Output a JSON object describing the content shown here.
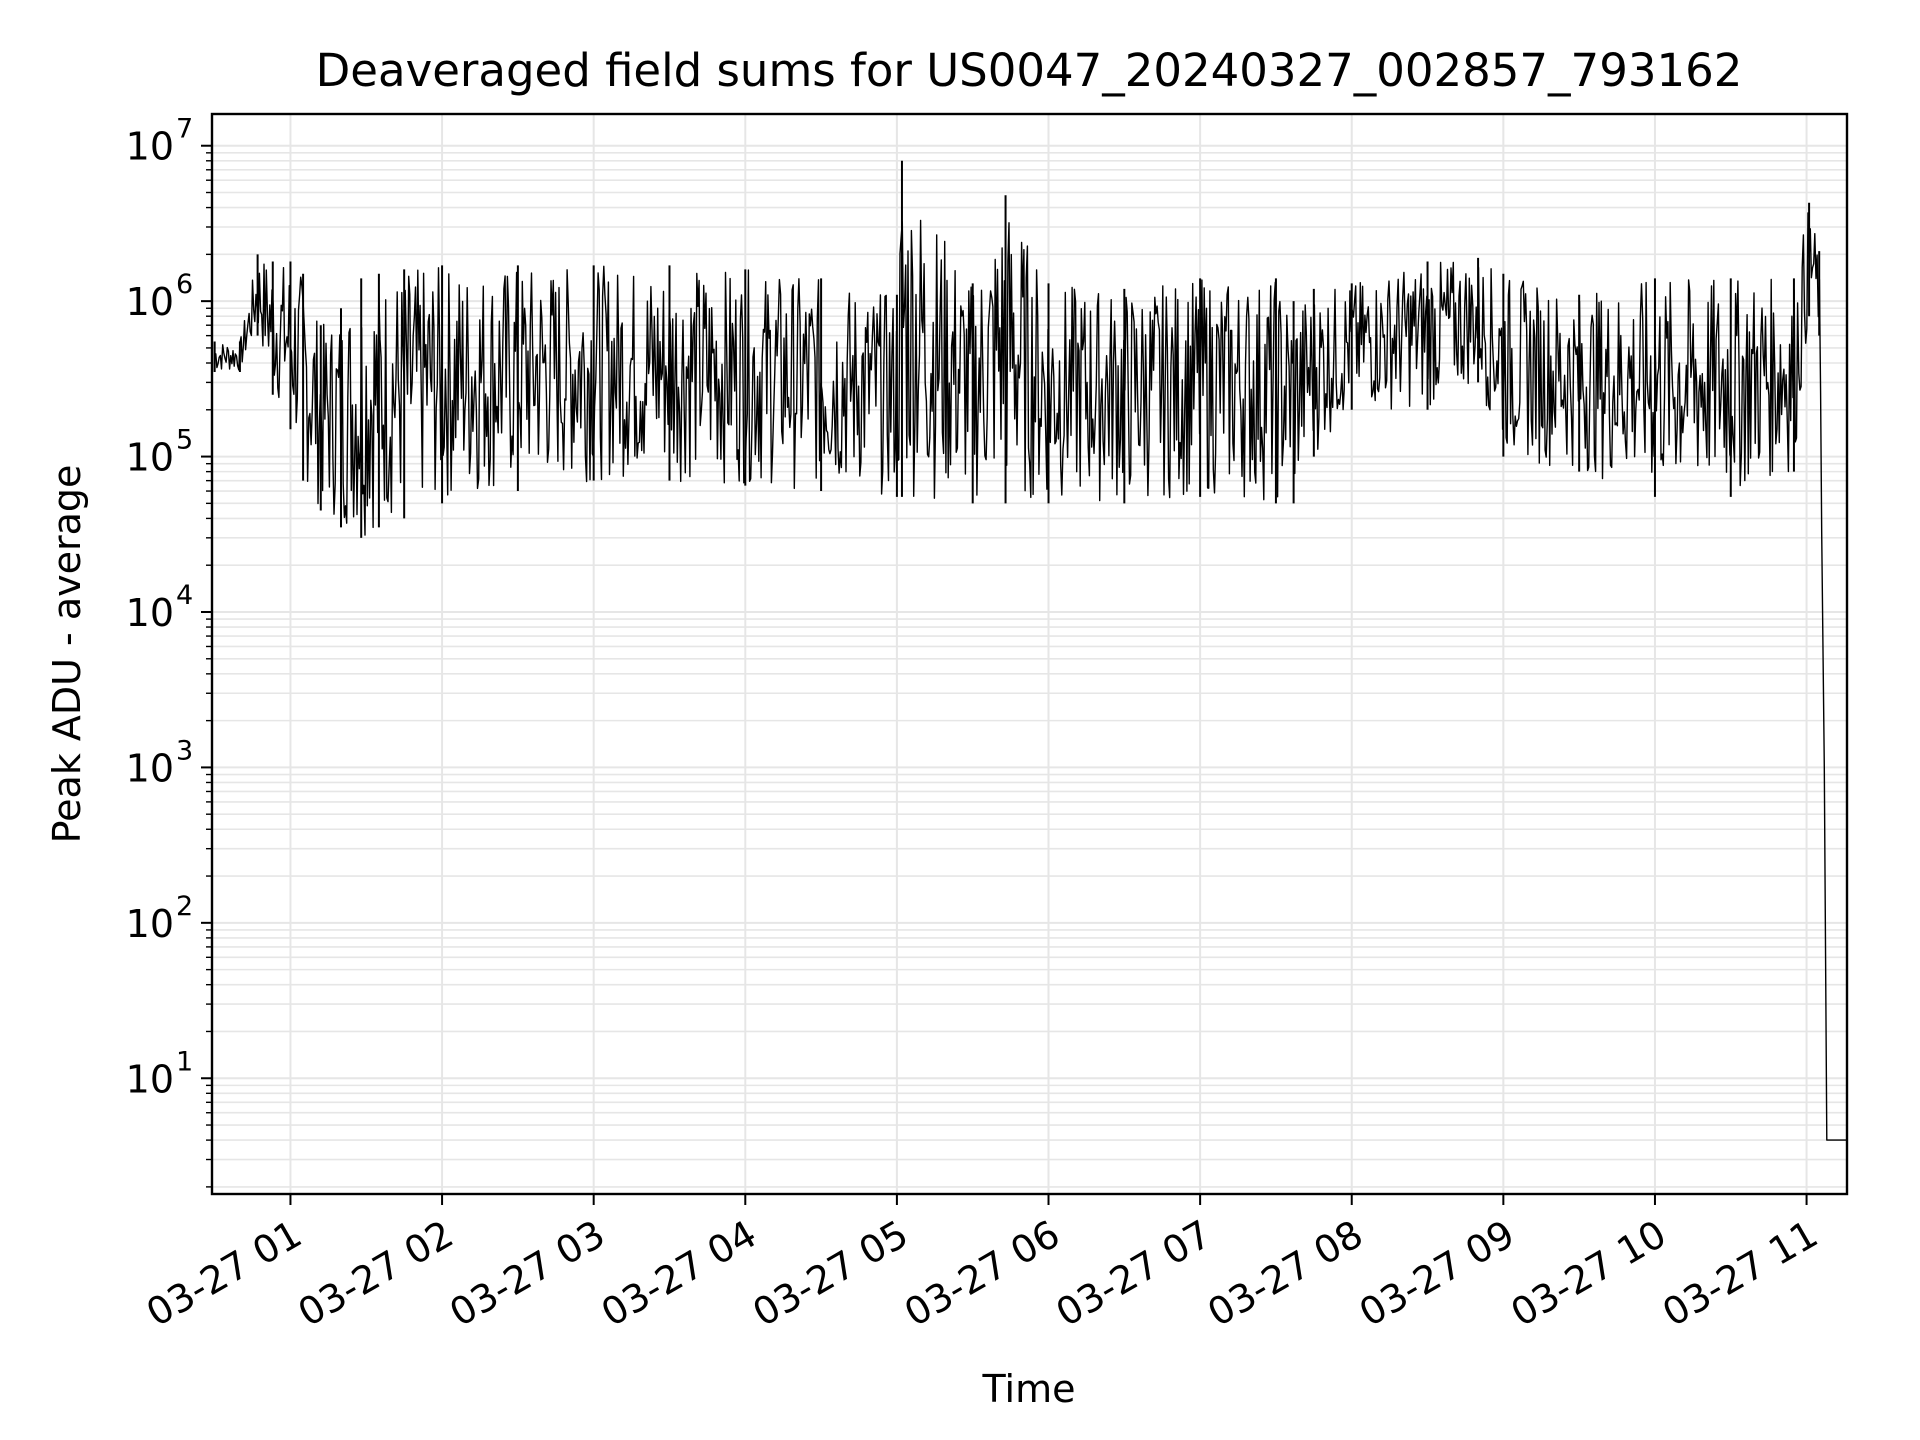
{
  "chart_data": {
    "type": "line",
    "title": "Deaveraged field sums for US0047_20240327_002857_793162",
    "xlabel": "Time",
    "ylabel": "Peak ADU - average",
    "yscale": "log",
    "ylim": [
      1.8,
      16000000
    ],
    "xlim": [
      "2024-03-27 00:28:57",
      "2024-03-27 11:16:00"
    ],
    "grid": true,
    "line_color": "#000000",
    "grid_color": "#e6e6e6",
    "x_ticks": [
      {
        "value": "2024-03-27 01:00",
        "label": "03-27 01"
      },
      {
        "value": "2024-03-27 02:00",
        "label": "03-27 02"
      },
      {
        "value": "2024-03-27 03:00",
        "label": "03-27 03"
      },
      {
        "value": "2024-03-27 04:00",
        "label": "03-27 04"
      },
      {
        "value": "2024-03-27 05:00",
        "label": "03-27 05"
      },
      {
        "value": "2024-03-27 06:00",
        "label": "03-27 06"
      },
      {
        "value": "2024-03-27 07:00",
        "label": "03-27 07"
      },
      {
        "value": "2024-03-27 08:00",
        "label": "03-27 08"
      },
      {
        "value": "2024-03-27 09:00",
        "label": "03-27 09"
      },
      {
        "value": "2024-03-27 10:00",
        "label": "03-27 10"
      },
      {
        "value": "2024-03-27 11:00",
        "label": "03-27 11"
      }
    ],
    "y_ticks": [
      {
        "value": 10,
        "base": "10",
        "exp": "1"
      },
      {
        "value": 100,
        "base": "10",
        "exp": "2"
      },
      {
        "value": 1000,
        "base": "10",
        "exp": "3"
      },
      {
        "value": 10000,
        "base": "10",
        "exp": "4"
      },
      {
        "value": 100000,
        "base": "10",
        "exp": "5"
      },
      {
        "value": 1000000,
        "base": "10",
        "exp": "6"
      },
      {
        "value": 10000000,
        "base": "10",
        "exp": "7"
      }
    ],
    "series": [
      {
        "x": [
          "2024-03-27 00:30",
          "2024-03-27 00:40",
          "2024-03-27 00:47",
          "2024-03-27 00:53",
          "2024-03-27 01:00",
          "2024-03-27 01:05",
          "2024-03-27 01:12",
          "2024-03-27 01:20",
          "2024-03-27 01:28",
          "2024-03-27 01:35",
          "2024-03-27 01:45",
          "2024-03-27 02:00",
          "2024-03-27 02:30",
          "2024-03-27 03:00",
          "2024-03-27 03:30",
          "2024-03-27 04:00",
          "2024-03-27 04:30",
          "2024-03-27 05:00",
          "2024-03-27 05:02",
          "2024-03-27 05:30",
          "2024-03-27 05:43",
          "2024-03-27 06:00",
          "2024-03-27 06:30",
          "2024-03-27 07:00",
          "2024-03-27 07:30",
          "2024-03-27 07:37",
          "2024-03-27 07:45",
          "2024-03-27 08:00",
          "2024-03-27 08:30",
          "2024-03-27 08:50",
          "2024-03-27 09:00",
          "2024-03-27 09:30",
          "2024-03-27 10:00",
          "2024-03-27 10:30",
          "2024-03-27 10:55",
          "2024-03-27 11:01",
          "2024-03-27 11:05",
          "2024-03-27 11:07",
          "2024-03-27 11:08",
          "2024-03-27 11:09",
          "2024-03-27 11:10",
          "2024-03-27 11:16"
        ],
        "y": [
          400000,
          400000,
          1300000,
          700000,
          1000000,
          300000,
          80000,
          50000,
          35000,
          40000,
          50000,
          200000,
          400000,
          800000,
          500000,
          250000,
          200000,
          150000,
          8000000,
          120000,
          4800000,
          100000,
          80000,
          90000,
          80000,
          60000,
          300000,
          600000,
          550000,
          800000,
          300000,
          250000,
          150000,
          100000,
          200000,
          1700000,
          1300000,
          1000,
          4,
          4,
          4,
          4
        ],
        "envelope_min": [
          350000,
          350000,
          600000,
          250000,
          150000,
          70000,
          45000,
          35000,
          30000,
          35000,
          40000,
          50000,
          60000,
          70000,
          70000,
          65000,
          60000,
          55000,
          55000,
          50000,
          50000,
          50000,
          50000,
          55000,
          50000,
          50000,
          100000,
          200000,
          200000,
          300000,
          100000,
          80000,
          55000,
          55000,
          80000,
          800000,
          600000,
          1000,
          4,
          4,
          4,
          4
        ],
        "envelope_max": [
          550000,
          550000,
          2000000,
          1800000,
          1800000,
          1500000,
          700000,
          900000,
          1400000,
          1500000,
          1600000,
          1700000,
          1700000,
          1700000,
          1700000,
          1600000,
          1400000,
          1100000,
          8000000,
          1300000,
          4800000,
          1300000,
          1200000,
          1400000,
          1400000,
          1000000,
          1200000,
          1300000,
          1800000,
          1900000,
          1500000,
          1100000,
          1400000,
          1400000,
          1400000,
          4300000,
          2100000,
          1000,
          4,
          4,
          4,
          4
        ]
      }
    ]
  }
}
